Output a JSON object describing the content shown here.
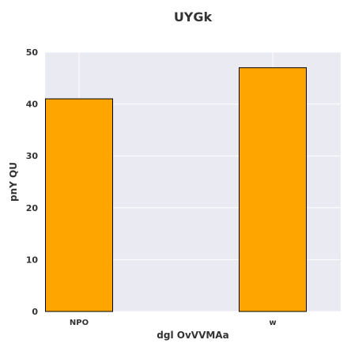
{
  "chart_data": {
    "type": "bar",
    "title": "UYGk",
    "xlabel": "dgl  OvVVMAa",
    "ylabel": "pnY QU",
    "categories": [
      "NPO",
      "w"
    ],
    "values": [
      41,
      47
    ],
    "ylim": [
      0,
      50
    ],
    "yticks": [
      0,
      10,
      20,
      30,
      40,
      50
    ],
    "grid": true,
    "bar_color": "#ffa500",
    "bar_edge_color": "#000000",
    "plot_background": "#eaeaf2",
    "grid_color": "#ffffff"
  }
}
